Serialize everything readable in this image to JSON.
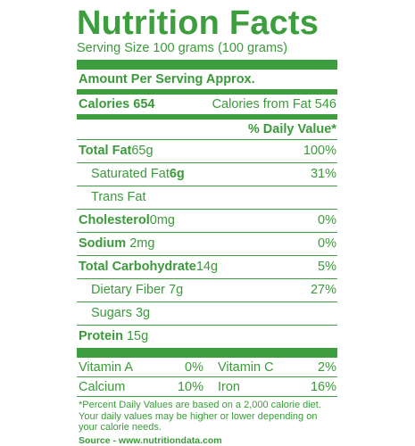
{
  "title": "Nutrition Facts",
  "serving": "Serving Size 100 grams (100 grams)",
  "amount_header": "Amount Per Serving Approx.",
  "calories": {
    "label": "Calories 654",
    "fat_label": "Calories from Fat 546"
  },
  "dv_header": "% Daily Value*",
  "nutrients": {
    "total_fat": {
      "label": "Total Fat",
      "amount": "65g",
      "dv": "100%"
    },
    "saturated_fat": {
      "label": "Saturated Fat",
      "amount": "6g",
      "dv": "31%"
    },
    "trans_fat": {
      "label": "Trans Fat"
    },
    "cholesterol": {
      "label": "Cholesterol",
      "amount": "0mg",
      "dv": "0%"
    },
    "sodium": {
      "label": "Sodium",
      "amount": "2mg",
      "dv": "0%"
    },
    "total_carb": {
      "label": "Total Carbohydrate",
      "amount": "14g",
      "dv": "5%"
    },
    "fiber": {
      "label": "Dietary Fiber",
      "amount": "7g",
      "dv": "27%"
    },
    "sugars": {
      "label": "Sugars",
      "amount": "3g"
    },
    "protein": {
      "label": "Protein",
      "amount": "15g"
    }
  },
  "vitamins": [
    {
      "name1": "Vitamin A",
      "v1": "0%",
      "name2": "Vitamin C",
      "v2": "2%"
    },
    {
      "name1": "Calcium",
      "v1": "10%",
      "name2": "Iron",
      "v2": "16%"
    }
  ],
  "footnote": "*Percent Daily Values are based on a 2,000 calorie diet. Your daily values may be higher or lower depending on your calorie needs.",
  "source": "Source - www.nutritiondata.com",
  "colors": {
    "accent": "#3d9e3d"
  }
}
